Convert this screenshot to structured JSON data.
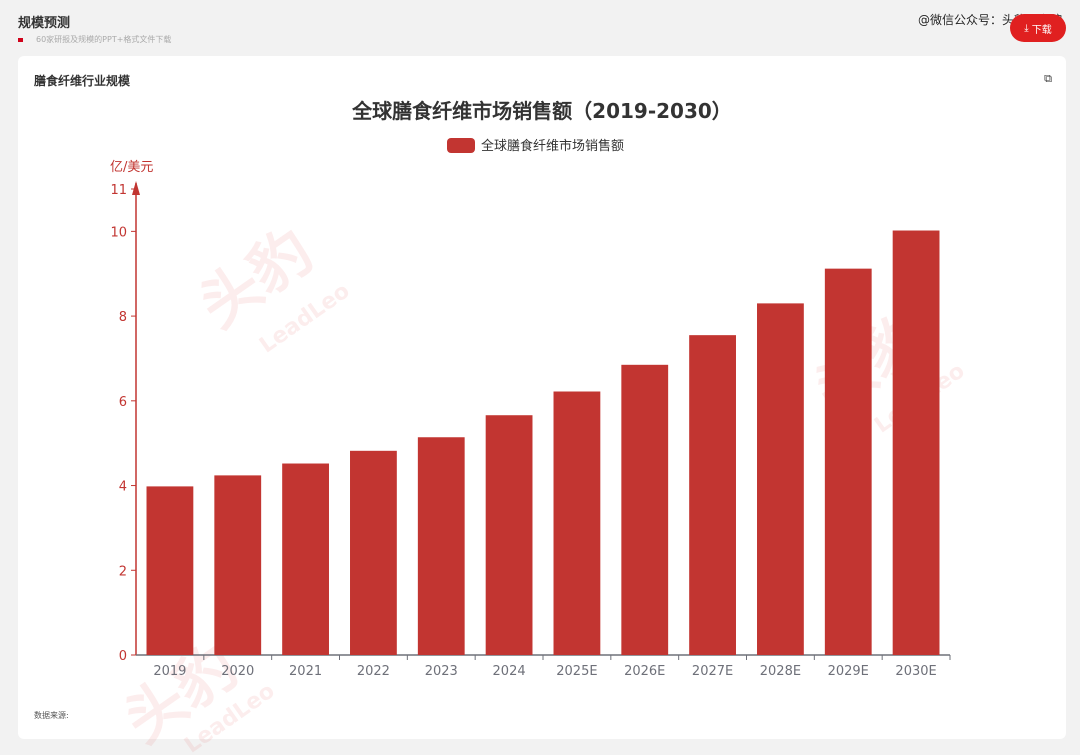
{
  "header": {
    "page_title": "规模预测",
    "subtitle": "60家研报及规模的PPT+格式文件下载",
    "account_watermark": "@微信公众号：头豹研究院",
    "download_label": "下载"
  },
  "card": {
    "title": "膳食纤维行业规模",
    "source_label": "数据来源:",
    "watermark_text": "头豹",
    "watermark_sub": "LeadLeo"
  },
  "chart_data": {
    "type": "bar",
    "title": "全球膳食纤维市场销售额（2019-2030）",
    "ylabel": "亿/美元",
    "ylim": [
      0,
      11
    ],
    "yticks": [
      0,
      2,
      4,
      6,
      8,
      10,
      11
    ],
    "legend_position": "top-center",
    "grid": false,
    "categories": [
      "2019",
      "2020",
      "2021",
      "2022",
      "2023",
      "2024",
      "2025E",
      "2026E",
      "2027E",
      "2028E",
      "2029E",
      "2030E"
    ],
    "series": [
      {
        "name": "全球膳食纤维市场销售额",
        "color": "#c23531",
        "values": [
          3.98,
          4.24,
          4.52,
          4.82,
          5.14,
          5.66,
          6.22,
          6.85,
          7.55,
          8.3,
          9.12,
          10.02
        ]
      }
    ],
    "axis_color": "#c23531",
    "xaxis_color": "#6e7079"
  }
}
